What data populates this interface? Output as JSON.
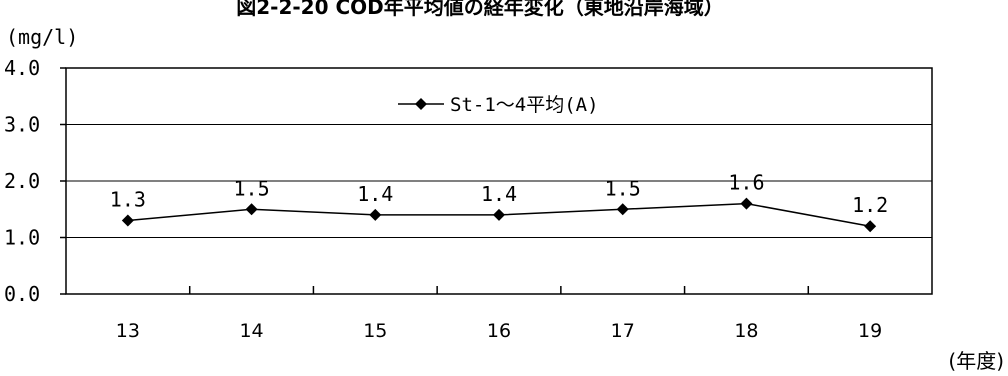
{
  "chart_data": {
    "type": "line",
    "title": "図2-2-20 COD年平均値の経年変化（東地沿岸海域）",
    "ylabel": "(mg/l)",
    "xlabel": "(年度)",
    "categories": [
      "13",
      "14",
      "15",
      "16",
      "17",
      "18",
      "19"
    ],
    "ylim": [
      0,
      4
    ],
    "yticks": [
      "0.0",
      "1.0",
      "2.0",
      "3.0",
      "4.0"
    ],
    "grid": true,
    "legend_position": "top-center",
    "series": [
      {
        "name": "St-1～4平均(A)",
        "values": [
          1.3,
          1.5,
          1.4,
          1.4,
          1.5,
          1.6,
          1.2
        ],
        "data_labels": [
          "1.3",
          "1.5",
          "1.4",
          "1.4",
          "1.5",
          "1.6",
          "1.2"
        ],
        "color": "#000000",
        "marker": "diamond"
      }
    ]
  }
}
